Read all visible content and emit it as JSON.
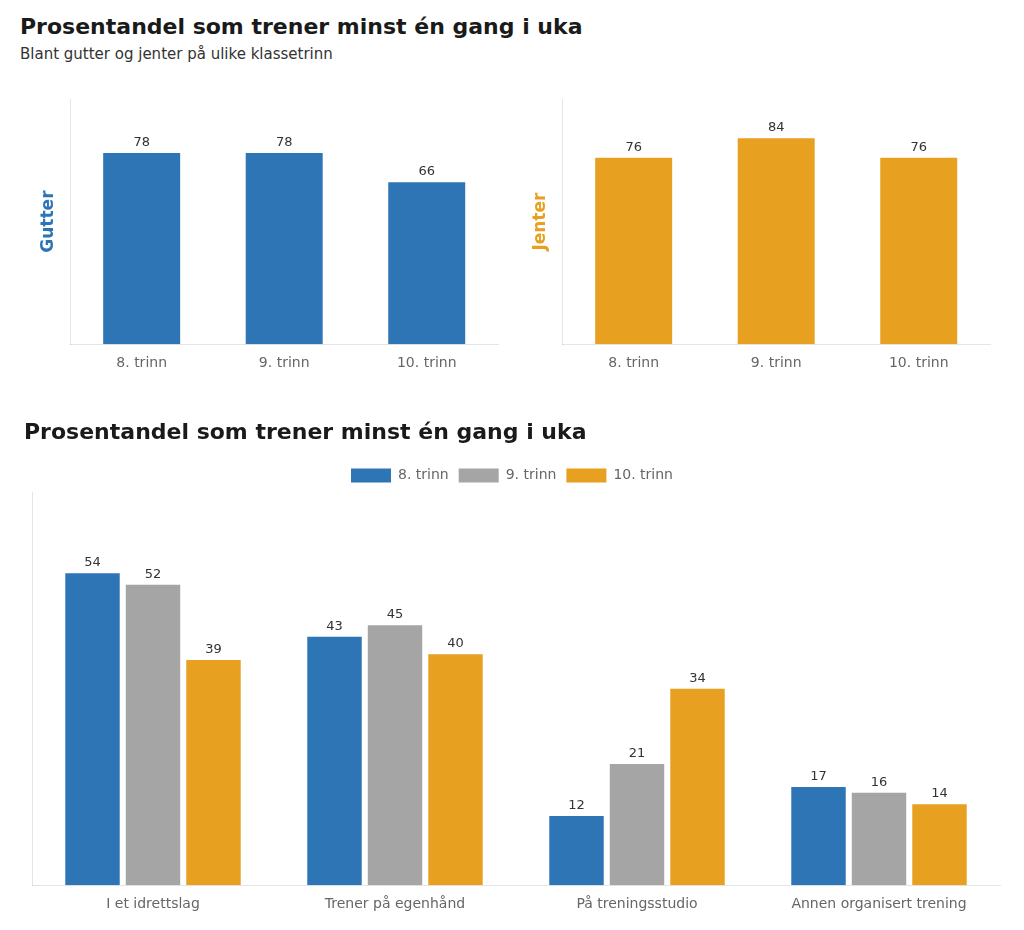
{
  "chart_data": [
    {
      "type": "bar",
      "title": "Prosentandel som trener minst én gang i uka",
      "subtitle": "Blant gutter og jenter på ulike klassetrinn",
      "ylabel": "Gutter",
      "categories": [
        "8. trinn",
        "9. trinn",
        "10. trinn"
      ],
      "values": [
        78,
        78,
        66
      ],
      "color": "#2e75b6",
      "ylim": [
        0,
        100
      ],
      "grid": false,
      "data_labels": true,
      "tick_labels": "x"
    },
    {
      "type": "bar",
      "ylabel": "Jenter",
      "categories": [
        "8. trinn",
        "9. trinn",
        "10. trinn"
      ],
      "values": [
        76,
        84,
        76
      ],
      "color": "#e8a020",
      "ylim": [
        0,
        100
      ],
      "grid": false,
      "data_labels": true,
      "tick_labels": "x"
    },
    {
      "type": "bar",
      "title": "Prosentandel som trener minst én gang i uka",
      "categories": [
        "I et idrettslag",
        "Trener på egenhånd",
        "På treningsstudio",
        "Annen organisert trening"
      ],
      "series": [
        {
          "name": "8. trinn",
          "color": "#2e75b6",
          "values": [
            54,
            43,
            12,
            17
          ]
        },
        {
          "name": "9. trinn",
          "color": "#a5a5a5",
          "values": [
            52,
            45,
            21,
            16
          ]
        },
        {
          "name": "10. trinn",
          "color": "#e8a020",
          "values": [
            39,
            40,
            34,
            14
          ]
        }
      ],
      "ylim": [
        0,
        68
      ],
      "grid": false,
      "legend": "top",
      "data_labels": true,
      "tick_labels": "x"
    }
  ]
}
